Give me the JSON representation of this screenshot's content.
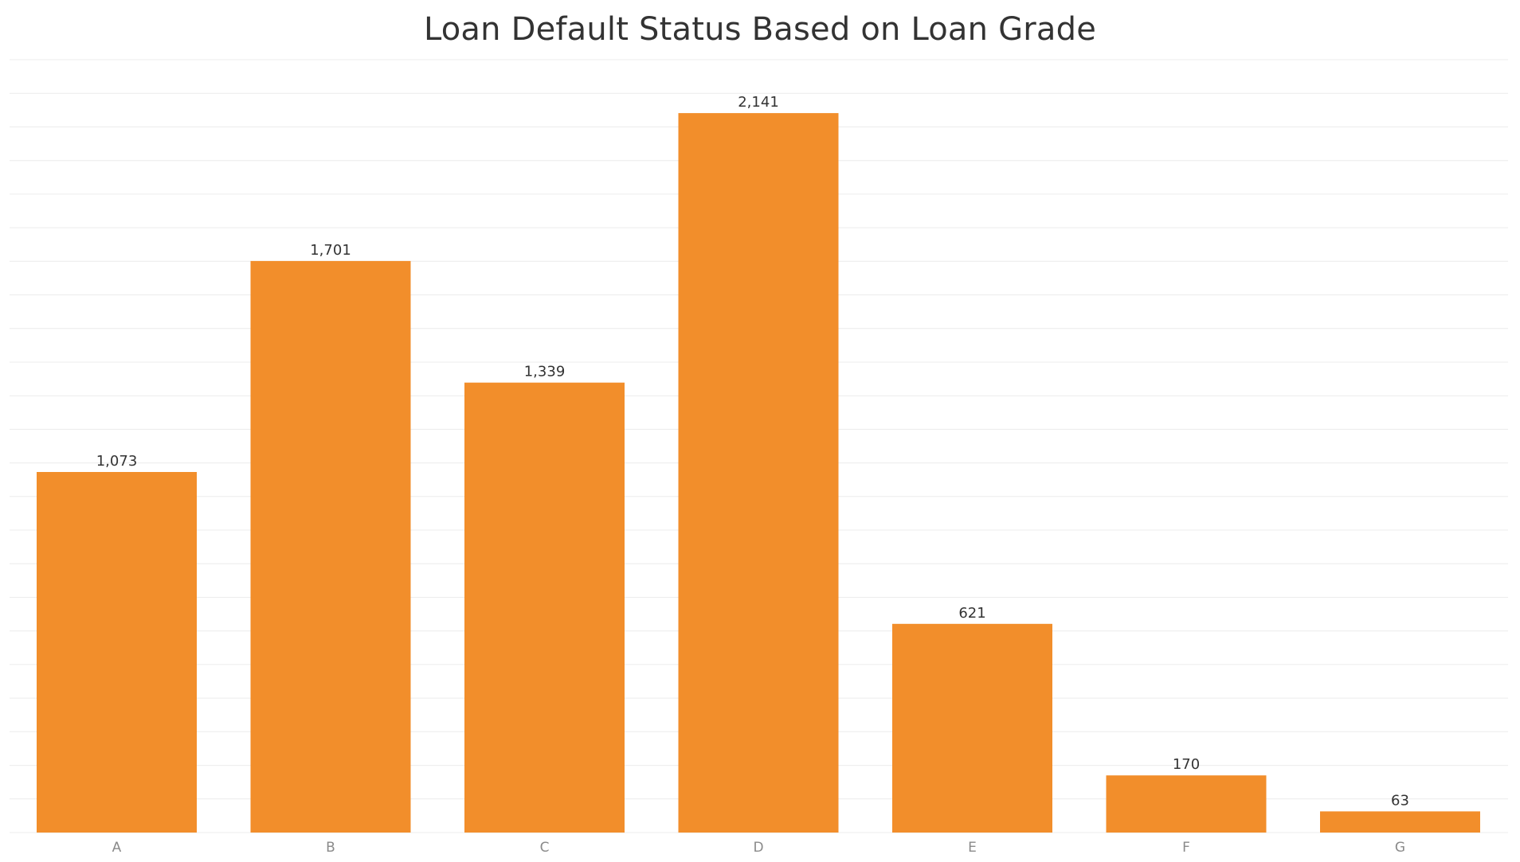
{
  "chart_data": {
    "type": "bar",
    "title": "Loan Default Status Based on Loan Grade",
    "xlabel": "",
    "ylabel": "",
    "categories": [
      "A",
      "B",
      "C",
      "D",
      "E",
      "F",
      "G"
    ],
    "values": [
      1073,
      1701,
      1339,
      2141,
      621,
      170,
      63
    ],
    "value_labels": [
      "1,073",
      "1,701",
      "1,339",
      "2,141",
      "621",
      "170",
      "63"
    ],
    "ylim": [
      0,
      2300
    ],
    "grid": true,
    "legend": "none",
    "bar_color": "#F28E2B"
  }
}
